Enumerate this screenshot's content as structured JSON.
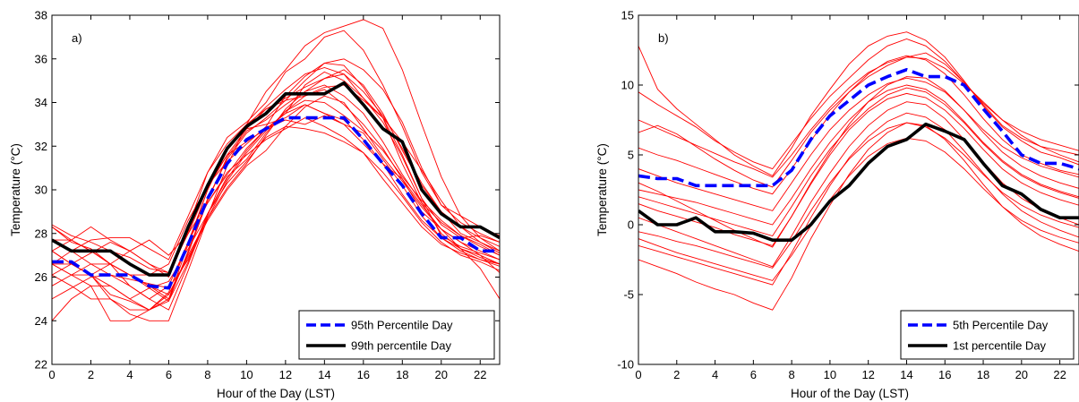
{
  "chart_data": [
    {
      "type": "line",
      "panel_label": "a)",
      "xlabel": "Hour of the Day (LST)",
      "ylabel": "Temperature (°C)",
      "xlim": [
        0,
        23
      ],
      "ylim": [
        22,
        38
      ],
      "xticks": [
        0,
        2,
        4,
        6,
        8,
        10,
        12,
        14,
        16,
        18,
        20,
        22
      ],
      "yticks": [
        22,
        24,
        26,
        28,
        30,
        32,
        34,
        36,
        38
      ],
      "x": [
        0,
        1,
        2,
        3,
        4,
        5,
        6,
        7,
        8,
        9,
        10,
        11,
        12,
        13,
        14,
        15,
        16,
        17,
        18,
        19,
        20,
        21,
        22,
        23
      ],
      "background_color": "#ff0000",
      "background_series": [
        [
          28.3,
          27.6,
          27.3,
          26.6,
          26.1,
          25.5,
          24.9,
          27.2,
          29.6,
          31.4,
          32.6,
          33.3,
          34.1,
          34.3,
          34.6,
          33.9,
          33.0,
          31.9,
          30.5,
          29.0,
          28.2,
          27.6,
          27.2,
          26.8
        ],
        [
          26.1,
          26.6,
          27.1,
          27.6,
          27.2,
          26.6,
          26.0,
          28.1,
          30.2,
          31.6,
          32.2,
          32.8,
          33.5,
          34.8,
          35.4,
          35.0,
          34.2,
          33.1,
          31.5,
          29.6,
          28.4,
          27.8,
          27.9,
          27.6
        ],
        [
          27.2,
          26.6,
          26.1,
          25.2,
          24.9,
          24.5,
          25.3,
          27.6,
          29.4,
          30.8,
          31.6,
          32.3,
          32.8,
          33.3,
          32.9,
          32.4,
          31.7,
          30.5,
          29.4,
          28.3,
          27.5,
          27.1,
          26.8,
          26.5
        ],
        [
          25.0,
          25.5,
          26.0,
          26.1,
          25.9,
          25.7,
          25.5,
          26.8,
          28.9,
          30.5,
          31.8,
          32.8,
          33.5,
          33.9,
          33.5,
          33.0,
          32.6,
          31.4,
          30.2,
          28.8,
          27.8,
          27.3,
          27.0,
          26.6
        ],
        [
          24.0,
          25.0,
          25.6,
          24.0,
          24.0,
          24.5,
          25.2,
          27.0,
          28.7,
          30.1,
          31.2,
          32.5,
          33.7,
          34.5,
          35.1,
          35.5,
          34.8,
          33.5,
          31.8,
          30.2,
          29.0,
          28.0,
          27.6,
          27.2
        ],
        [
          28.4,
          27.9,
          27.6,
          27.2,
          26.9,
          26.4,
          26.2,
          28.3,
          30.8,
          32.4,
          33.1,
          34.0,
          35.4,
          36.0,
          37.0,
          37.3,
          36.4,
          34.8,
          32.9,
          30.8,
          29.3,
          28.8,
          28.3,
          27.9
        ],
        [
          26.6,
          26.6,
          26.1,
          26.6,
          27.2,
          27.7,
          27.0,
          28.0,
          29.4,
          30.7,
          31.9,
          32.8,
          33.2,
          33.0,
          33.4,
          33.0,
          32.1,
          31.2,
          30.5,
          29.3,
          28.2,
          27.3,
          26.4,
          25.0
        ],
        [
          27.7,
          27.2,
          27.7,
          27.8,
          27.8,
          27.3,
          26.8,
          28.8,
          30.8,
          32.1,
          33.0,
          33.7,
          34.2,
          34.7,
          35.1,
          35.3,
          34.2,
          33.3,
          31.6,
          29.6,
          27.9,
          27.4,
          27.1,
          26.8
        ],
        [
          25.6,
          26.1,
          26.6,
          26.6,
          26.1,
          25.6,
          25.2,
          26.9,
          28.6,
          30.0,
          31.1,
          31.8,
          32.9,
          33.8,
          34.3,
          34.0,
          32.8,
          31.5,
          30.4,
          29.2,
          28.2,
          27.6,
          27.0,
          26.2
        ],
        [
          27.2,
          26.6,
          26.1,
          25.0,
          24.3,
          24.0,
          24.0,
          26.3,
          28.7,
          30.4,
          31.7,
          32.7,
          33.6,
          34.3,
          34.7,
          34.8,
          34.1,
          33.3,
          32.2,
          30.9,
          29.5,
          28.3,
          27.6,
          27.1
        ],
        [
          26.6,
          27.2,
          27.2,
          26.6,
          25.6,
          25.0,
          25.6,
          27.6,
          30.0,
          31.9,
          32.8,
          33.0,
          33.3,
          33.9,
          33.5,
          33.2,
          32.3,
          31.2,
          29.8,
          28.6,
          27.8,
          27.2,
          26.8,
          26.6
        ],
        [
          27.7,
          27.7,
          27.2,
          26.6,
          26.1,
          26.1,
          26.6,
          28.6,
          30.2,
          31.3,
          32.1,
          32.9,
          34.3,
          35.2,
          35.8,
          36.0,
          35.5,
          34.6,
          33.1,
          31.0,
          29.3,
          28.5,
          28.0,
          27.6
        ],
        [
          26.1,
          25.6,
          25.0,
          25.0,
          24.5,
          24.5,
          24.9,
          26.7,
          28.9,
          30.6,
          31.4,
          32.6,
          33.6,
          34.1,
          34.0,
          33.4,
          32.7,
          31.8,
          30.6,
          29.5,
          28.6,
          27.9,
          27.4,
          27.0
        ],
        [
          27.2,
          27.7,
          28.3,
          27.7,
          27.2,
          26.6,
          26.2,
          28.0,
          30.1,
          31.6,
          32.8,
          33.7,
          34.1,
          35.0,
          35.8,
          35.7,
          34.7,
          33.3,
          31.2,
          29.4,
          28.0,
          27.3,
          26.9,
          26.6
        ],
        [
          26.6,
          26.1,
          25.6,
          25.6,
          25.0,
          25.5,
          25.8,
          27.3,
          28.9,
          30.3,
          31.3,
          32.4,
          32.9,
          32.8,
          32.6,
          32.2,
          31.7,
          30.8,
          29.7,
          28.5,
          27.6,
          27.0,
          26.7,
          26.3
        ],
        [
          27.7,
          27.2,
          26.6,
          26.1,
          25.6,
          25.0,
          24.5,
          26.6,
          28.8,
          31.1,
          33.0,
          34.5,
          35.5,
          36.6,
          37.2,
          37.5,
          37.8,
          37.4,
          35.5,
          33.0,
          30.6,
          28.8,
          27.8,
          27.2
        ],
        [
          26.6,
          26.1,
          26.1,
          25.6,
          25.0,
          24.5,
          25.0,
          27.1,
          29.5,
          31.5,
          32.7,
          33.2,
          33.9,
          34.5,
          34.8,
          34.3,
          33.5,
          32.2,
          30.7,
          29.4,
          28.5,
          27.9,
          27.5,
          27.0
        ],
        [
          28.3,
          27.7,
          27.2,
          26.6,
          26.1,
          25.6,
          25.0,
          27.5,
          30.0,
          31.8,
          32.9,
          33.8,
          34.6,
          35.3,
          35.6,
          35.3,
          34.5,
          33.4,
          31.9,
          30.3,
          29.0,
          28.3,
          27.8,
          27.4
        ]
      ],
      "series": [
        {
          "name": "95th Percentile Day",
          "color": "#0000ff",
          "style": "dashed",
          "values": [
            26.7,
            26.7,
            26.1,
            26.1,
            26.1,
            25.6,
            25.5,
            27.5,
            29.6,
            31.2,
            32.3,
            32.8,
            33.3,
            33.3,
            33.3,
            33.3,
            32.3,
            31.2,
            30.2,
            28.9,
            27.8,
            27.8,
            27.2,
            27.2
          ]
        },
        {
          "name": "99th percentile Day",
          "color": "#000000",
          "style": "solid",
          "values": [
            27.7,
            27.2,
            27.2,
            27.2,
            26.6,
            26.1,
            26.1,
            28.3,
            30.2,
            31.9,
            32.9,
            33.5,
            34.4,
            34.4,
            34.4,
            34.9,
            33.9,
            32.8,
            32.2,
            30.0,
            28.9,
            28.3,
            28.3,
            27.8
          ]
        }
      ],
      "legend": "bottom-right",
      "grid": false
    },
    {
      "type": "line",
      "panel_label": "b)",
      "xlabel": "Hour of the Day (LST)",
      "ylabel": "Temperature (°C)",
      "xlim": [
        0,
        23
      ],
      "ylim": [
        -10,
        15
      ],
      "xticks": [
        0,
        2,
        4,
        6,
        8,
        10,
        12,
        14,
        16,
        18,
        20,
        22
      ],
      "yticks": [
        -10,
        -5,
        0,
        5,
        10,
        15
      ],
      "x": [
        0,
        1,
        2,
        3,
        4,
        5,
        6,
        7,
        8,
        9,
        10,
        11,
        12,
        13,
        14,
        15,
        16,
        17,
        18,
        19,
        20,
        21,
        22,
        23
      ],
      "background_color": "#ff0000",
      "background_series": [
        [
          12.8,
          9.7,
          8.3,
          7.2,
          6.1,
          5.0,
          4.2,
          3.5,
          5.5,
          7.8,
          9.7,
          11.5,
          12.8,
          13.5,
          13.8,
          13.2,
          12.0,
          10.3,
          8.5,
          7.0,
          6.0,
          5.2,
          4.8,
          4.3
        ],
        [
          9.5,
          8.6,
          7.8,
          7.0,
          6.0,
          5.2,
          4.5,
          4.0,
          5.8,
          7.6,
          9.2,
          10.5,
          11.8,
          12.8,
          13.3,
          12.8,
          11.7,
          10.2,
          8.7,
          7.5,
          6.7,
          6.1,
          5.7,
          5.3
        ],
        [
          6.6,
          7.1,
          6.5,
          5.6,
          4.7,
          3.9,
          3.2,
          2.7,
          4.6,
          6.6,
          8.2,
          9.5,
          10.6,
          11.4,
          12.0,
          12.3,
          11.5,
          10.2,
          8.6,
          7.1,
          6.2,
          5.6,
          5.3,
          5.0
        ],
        [
          4.0,
          3.5,
          3.0,
          2.6,
          2.2,
          1.8,
          1.4,
          1.0,
          3.0,
          5.0,
          6.8,
          8.2,
          9.3,
          10.1,
          10.5,
          10.2,
          9.5,
          8.2,
          6.8,
          5.6,
          4.8,
          4.2,
          3.8,
          3.4
        ],
        [
          2.0,
          1.6,
          1.2,
          0.8,
          0.4,
          0.0,
          -0.4,
          -0.8,
          1.3,
          3.5,
          5.4,
          7.0,
          8.3,
          9.3,
          9.8,
          9.5,
          8.6,
          7.3,
          5.8,
          4.5,
          3.5,
          2.8,
          2.3,
          1.9
        ],
        [
          0.5,
          0.0,
          -0.5,
          -1.0,
          -1.5,
          -2.0,
          -2.5,
          -3.0,
          -0.8,
          1.6,
          3.7,
          5.6,
          7.1,
          8.2,
          8.8,
          8.6,
          7.6,
          6.1,
          4.5,
          3.0,
          1.9,
          1.1,
          0.5,
          0.0
        ],
        [
          -1.5,
          -1.9,
          -2.3,
          -2.7,
          -3.1,
          -3.5,
          -3.9,
          -4.3,
          -2.0,
          0.5,
          2.8,
          4.8,
          6.3,
          7.4,
          8.0,
          7.7,
          6.8,
          5.3,
          3.7,
          2.2,
          1.0,
          0.2,
          -0.4,
          -0.9
        ],
        [
          -2.5,
          -3.0,
          -3.5,
          -4.1,
          -4.6,
          -5.0,
          -5.6,
          -6.1,
          -3.8,
          -1.0,
          1.4,
          3.6,
          5.4,
          6.6,
          7.3,
          7.1,
          6.1,
          4.6,
          2.9,
          1.3,
          0.1,
          -0.8,
          -1.4,
          -1.9
        ],
        [
          3.0,
          2.4,
          1.7,
          1.0,
          0.3,
          -0.4,
          -1.0,
          -1.6,
          0.6,
          3.0,
          5.2,
          7.2,
          8.8,
          10.0,
          10.6,
          10.5,
          9.6,
          8.2,
          6.6,
          5.2,
          4.2,
          3.5,
          3.0,
          2.6
        ],
        [
          5.5,
          5.0,
          4.6,
          4.1,
          3.6,
          3.1,
          2.6,
          2.2,
          4.0,
          6.0,
          7.9,
          9.5,
          10.8,
          11.7,
          12.1,
          11.8,
          10.8,
          9.3,
          7.6,
          6.1,
          5.0,
          4.4,
          3.9,
          3.6
        ],
        [
          -0.5,
          -0.8,
          -1.2,
          -1.5,
          -1.9,
          -2.3,
          -2.7,
          -3.1,
          -1.2,
          1.0,
          3.0,
          4.7,
          6.0,
          6.9,
          7.3,
          7.0,
          6.2,
          5.0,
          3.6,
          2.3,
          1.4,
          0.7,
          0.2,
          -0.2
        ],
        [
          1.5,
          1.0,
          0.6,
          0.2,
          -0.2,
          -0.7,
          -1.1,
          -1.5,
          0.6,
          2.9,
          5.0,
          6.8,
          8.1,
          9.0,
          9.4,
          9.1,
          8.2,
          6.9,
          5.4,
          4.0,
          3.0,
          2.3,
          1.8,
          1.4
        ],
        [
          -1.0,
          -1.5,
          -2.0,
          -2.4,
          -2.8,
          -3.2,
          -3.6,
          -4.0,
          -2.2,
          -0.1,
          1.8,
          3.5,
          4.9,
          5.8,
          6.2,
          6.0,
          5.2,
          4.0,
          2.6,
          1.3,
          0.3,
          -0.4,
          -0.9,
          -1.3
        ],
        [
          7.5,
          6.9,
          6.3,
          5.7,
          5.1,
          4.5,
          4.0,
          3.4,
          5.0,
          6.8,
          8.4,
          9.8,
          10.9,
          11.6,
          12.0,
          11.9,
          11.2,
          10.1,
          8.8,
          7.5,
          6.4,
          5.6,
          5.0,
          4.5
        ],
        [
          2.5,
          2.2,
          1.9,
          1.6,
          1.2,
          0.8,
          0.4,
          0.0,
          1.9,
          4.0,
          5.9,
          7.5,
          8.8,
          9.6,
          10.0,
          9.7,
          8.8,
          7.4,
          5.9,
          4.6,
          3.6,
          2.9,
          2.4,
          2.0
        ]
      ],
      "series": [
        {
          "name": "5th Percentile Day",
          "color": "#0000ff",
          "style": "dashed",
          "values": [
            3.5,
            3.3,
            3.3,
            2.8,
            2.8,
            2.8,
            2.8,
            2.8,
            3.9,
            6.1,
            7.8,
            8.9,
            10.0,
            10.6,
            11.1,
            10.6,
            10.6,
            10.0,
            8.3,
            6.7,
            5.0,
            4.4,
            4.4,
            4.0
          ]
        },
        {
          "name": "1st percentile Day",
          "color": "#000000",
          "style": "solid",
          "values": [
            1.0,
            0.0,
            0.0,
            0.5,
            -0.5,
            -0.5,
            -0.6,
            -1.1,
            -1.1,
            0.0,
            1.7,
            2.8,
            4.4,
            5.6,
            6.1,
            7.2,
            6.7,
            6.1,
            4.4,
            2.8,
            2.2,
            1.1,
            0.5,
            0.5
          ]
        }
      ],
      "legend": "bottom-right",
      "grid": false
    }
  ]
}
